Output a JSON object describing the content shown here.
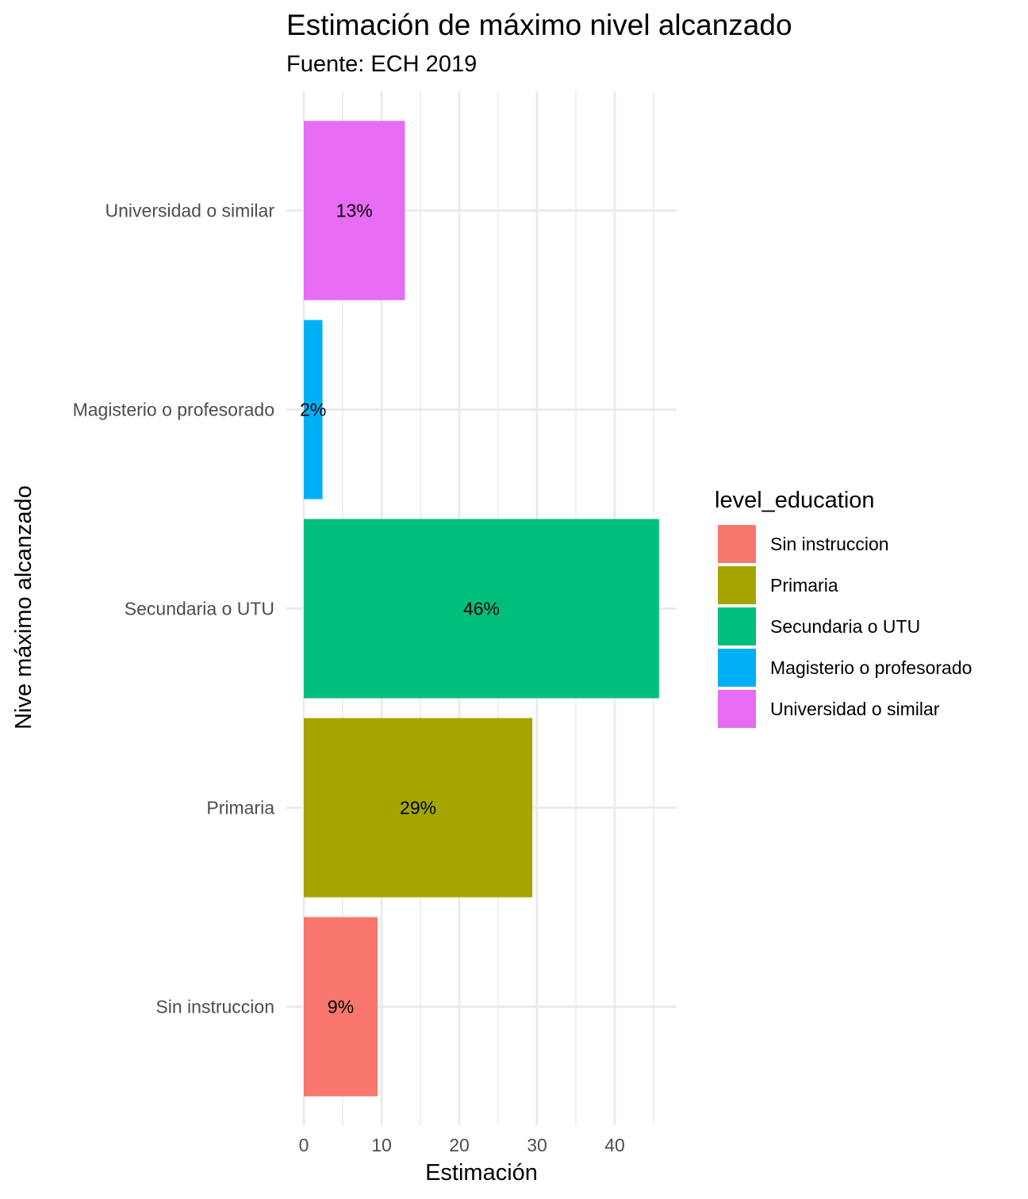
{
  "chart_data": {
    "type": "bar",
    "orientation": "horizontal",
    "title": "Estimación de máximo nivel alcanzado",
    "subtitle": "Fuente: ECH 2019",
    "xlabel": "Estimación",
    "ylabel": "Nive máximo alcanzado",
    "xlim": [
      0,
      48
    ],
    "x_ticks": [
      0,
      10,
      20,
      30,
      40
    ],
    "grid": true,
    "legend_position": "right",
    "legend_title": "level_education",
    "categories": [
      "Sin instruccion",
      "Primaria",
      "Secundaria o UTU",
      "Magisterio o profesorado",
      "Universidad o similar"
    ],
    "values": [
      9.5,
      29.4,
      45.7,
      2.4,
      13.0
    ],
    "labels": [
      "9%",
      "29%",
      "46%",
      "2%",
      "13%"
    ],
    "colors": [
      "#F8766D",
      "#A3A500",
      "#00BF7D",
      "#00B0F6",
      "#E76BF3"
    ]
  }
}
